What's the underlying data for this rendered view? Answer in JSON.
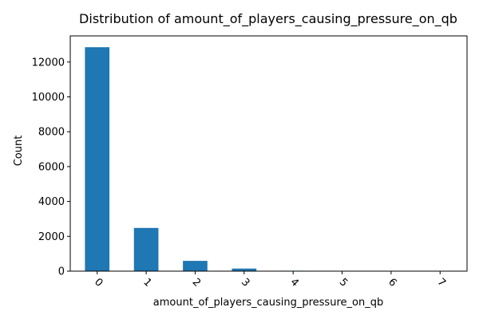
{
  "chart_data": {
    "type": "bar",
    "title": "Distribution of amount_of_players_causing_pressure_on_qb",
    "xlabel": "amount_of_players_causing_pressure_on_qb",
    "ylabel": "Count",
    "categories": [
      "0",
      "1",
      "2",
      "3",
      "4",
      "5",
      "6",
      "7"
    ],
    "values": [
      12850,
      2480,
      590,
      150,
      25,
      8,
      3,
      1
    ],
    "ylim": [
      0,
      13500
    ],
    "yticks": [
      0,
      2000,
      4000,
      6000,
      8000,
      10000,
      12000
    ],
    "ytick_labels": [
      "0",
      "2000",
      "4000",
      "6000",
      "8000",
      "10000",
      "12000"
    ],
    "grid": false,
    "legend": "none",
    "bar_color": "#1f77b4"
  }
}
